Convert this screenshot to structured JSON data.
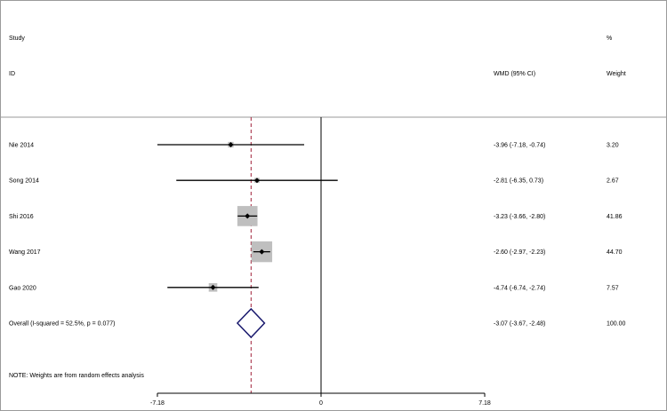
{
  "chart_data": {
    "type": "forest",
    "headers": {
      "study_line1": "Study",
      "study_line2": "ID",
      "effect": "WMD (95% CI)",
      "weight_line1": "%",
      "weight_line2": "Weight"
    },
    "studies": [
      {
        "name": "Nie 2014",
        "estimate": -3.96,
        "lower": -7.18,
        "upper": -0.74,
        "ci_text": "-3.96 (-7.18, -0.74)",
        "weight": 3.2,
        "weight_text": "3.20"
      },
      {
        "name": "Song 2014",
        "estimate": -2.81,
        "lower": -6.35,
        "upper": 0.73,
        "ci_text": "-2.81 (-6.35, 0.73)",
        "weight": 2.67,
        "weight_text": "2.67"
      },
      {
        "name": "Shi 2016",
        "estimate": -3.23,
        "lower": -3.66,
        "upper": -2.8,
        "ci_text": "-3.23 (-3.66, -2.80)",
        "weight": 41.86,
        "weight_text": "41.86"
      },
      {
        "name": "Wang 2017",
        "estimate": -2.6,
        "lower": -2.97,
        "upper": -2.23,
        "ci_text": "-2.60 (-2.97, -2.23)",
        "weight": 44.7,
        "weight_text": "44.70"
      },
      {
        "name": "Gao 2020",
        "estimate": -4.74,
        "lower": -6.74,
        "upper": -2.74,
        "ci_text": "-4.74 (-6.74, -2.74)",
        "weight": 7.57,
        "weight_text": "7.57"
      }
    ],
    "overall": {
      "name": "Overall  (I-squared = 52.5%, p = 0.077)",
      "estimate": -3.07,
      "lower": -3.67,
      "upper": -2.48,
      "ci_text": "-3.07 (-3.67, -2.48)",
      "weight_text": "100.00"
    },
    "note": "NOTE: Weights are from random effects analysis",
    "x_ticks": [
      -7.18,
      0,
      7.18
    ],
    "x_tick_labels": [
      "-7.18",
      "0",
      "7.18"
    ],
    "xlim": [
      -7.18,
      7.18
    ],
    "colors": {
      "ci_line": "#000000",
      "weight_box": "#bfbfbf",
      "diamond": "#1a1a6e",
      "overall_line": "#a0223a",
      "frame": "#9a9a9a"
    }
  }
}
